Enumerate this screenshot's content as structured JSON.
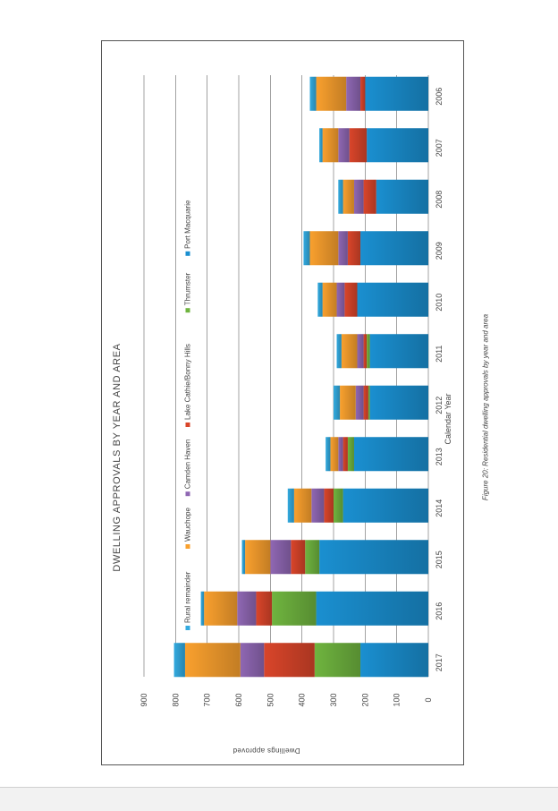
{
  "caption": "Figure 20: Residential dwelling approvals by year and area",
  "chart_data": {
    "type": "bar",
    "orientation": "horizontal-stacked",
    "title": "DWELLING APPROVALS BY YEAR AND AREA",
    "xlabel": "Calendar Year",
    "ylabel": "Dwellings approved",
    "ylim": [
      0,
      900
    ],
    "yticks": [
      0,
      100,
      200,
      300,
      400,
      500,
      600,
      700,
      800,
      900
    ],
    "grid": true,
    "legend_position": "top",
    "categories": [
      "2006",
      "2007",
      "2008",
      "2009",
      "2010",
      "2011",
      "2012",
      "2013",
      "2014",
      "2015",
      "2016",
      "2017"
    ],
    "series": [
      {
        "name": "Port Macquarie",
        "color": "#1a8fd0",
        "values": [
          200,
          195,
          165,
          215,
          225,
          185,
          185,
          235,
          270,
          345,
          355,
          215
        ]
      },
      {
        "name": "Thrumster",
        "color": "#6fb43f",
        "values": [
          0,
          0,
          0,
          0,
          0,
          10,
          5,
          20,
          30,
          45,
          140,
          145
        ]
      },
      {
        "name": "Lake Cathie/Bonny Hills",
        "color": "#d9452a",
        "values": [
          15,
          55,
          40,
          40,
          40,
          10,
          15,
          15,
          30,
          45,
          50,
          160
        ]
      },
      {
        "name": "Camden Haven",
        "color": "#8f67b3",
        "values": [
          45,
          35,
          30,
          30,
          25,
          20,
          25,
          15,
          40,
          65,
          60,
          75
        ]
      },
      {
        "name": "Wauchope",
        "color": "#f9a02e",
        "values": [
          95,
          50,
          35,
          90,
          45,
          50,
          50,
          25,
          55,
          80,
          105,
          175
        ]
      },
      {
        "name": "Rural remainder",
        "color": "#33aadf",
        "values": [
          20,
          10,
          15,
          20,
          15,
          15,
          20,
          15,
          20,
          10,
          10,
          35
        ]
      }
    ]
  }
}
